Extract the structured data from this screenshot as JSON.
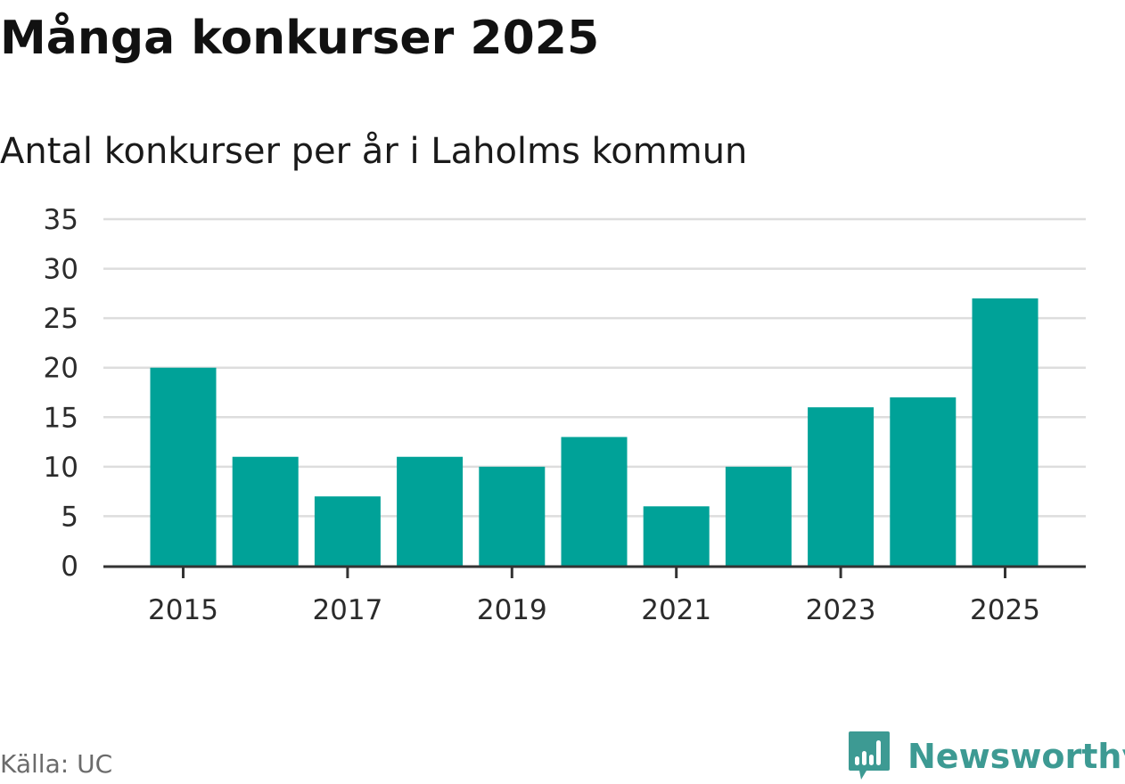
{
  "title": "Många konkurser 2025",
  "subtitle": "Antal konkurser per år i Laholms kommun",
  "source": "Källa: UC",
  "brand": {
    "name": "Newsworthy",
    "icon": "newsworthy-logo-icon"
  },
  "colors": {
    "bar": "#00a298",
    "grid": "#dddddd",
    "axis": "#333333",
    "brand": "#3d9a93"
  },
  "chart_data": {
    "type": "bar",
    "categories": [
      "2015",
      "2016",
      "2017",
      "2018",
      "2019",
      "2020",
      "2021",
      "2022",
      "2023",
      "2024",
      "2025"
    ],
    "values": [
      20,
      11,
      7,
      11,
      10,
      13,
      6,
      10,
      16,
      17,
      27
    ],
    "x_tick_labels": [
      "2015",
      "2017",
      "2019",
      "2021",
      "2023",
      "2025"
    ],
    "y_ticks": [
      0,
      5,
      10,
      15,
      20,
      25,
      30,
      35
    ],
    "ylim": [
      0,
      35
    ],
    "xlabel": "",
    "ylabel": "",
    "grid": true,
    "legend": "none"
  }
}
